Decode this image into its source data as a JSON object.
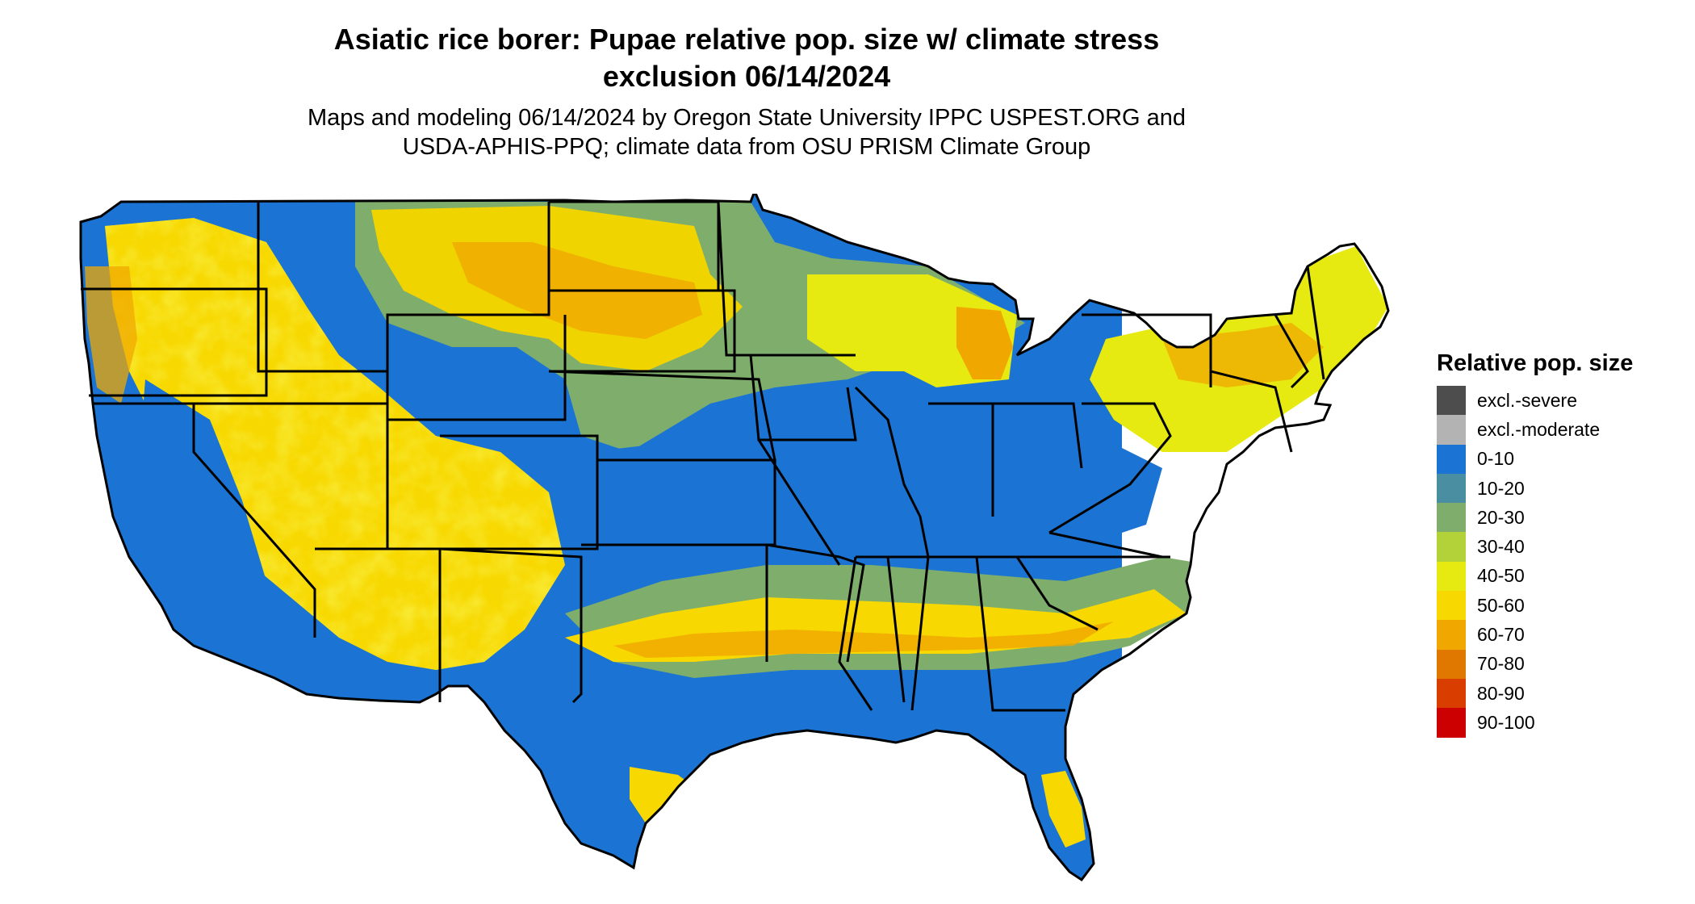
{
  "title": {
    "line1": "Asiatic rice borer: Pupae relative pop. size w/ climate stress",
    "line2": "exclusion 06/14/2024"
  },
  "subtitle": {
    "line1": "Maps and modeling 06/14/2024 by Oregon State University IPPC USPEST.ORG and",
    "line2": "USDA-APHIS-PPQ; climate data from OSU PRISM Climate Group"
  },
  "legend": {
    "title": "Relative pop. size",
    "items": [
      {
        "label": "excl.-severe",
        "color": "#4d4d4d"
      },
      {
        "label": "excl.-moderate",
        "color": "#b3b3b3"
      },
      {
        "label": "0-10",
        "color": "#1b74d3"
      },
      {
        "label": "10-20",
        "color": "#4a8fa1"
      },
      {
        "label": "20-30",
        "color": "#7fae6c"
      },
      {
        "label": "30-40",
        "color": "#b3d138"
      },
      {
        "label": "40-50",
        "color": "#e6ea10"
      },
      {
        "label": "50-60",
        "color": "#f7d800"
      },
      {
        "label": "60-70",
        "color": "#f0a800"
      },
      {
        "label": "70-80",
        "color": "#e07800"
      },
      {
        "label": "80-90",
        "color": "#d93d00"
      },
      {
        "label": "90-100",
        "color": "#cc0000"
      }
    ]
  },
  "map": {
    "region": "contiguous United States",
    "background_color": "#1b74d3",
    "border_color": "#000000"
  }
}
